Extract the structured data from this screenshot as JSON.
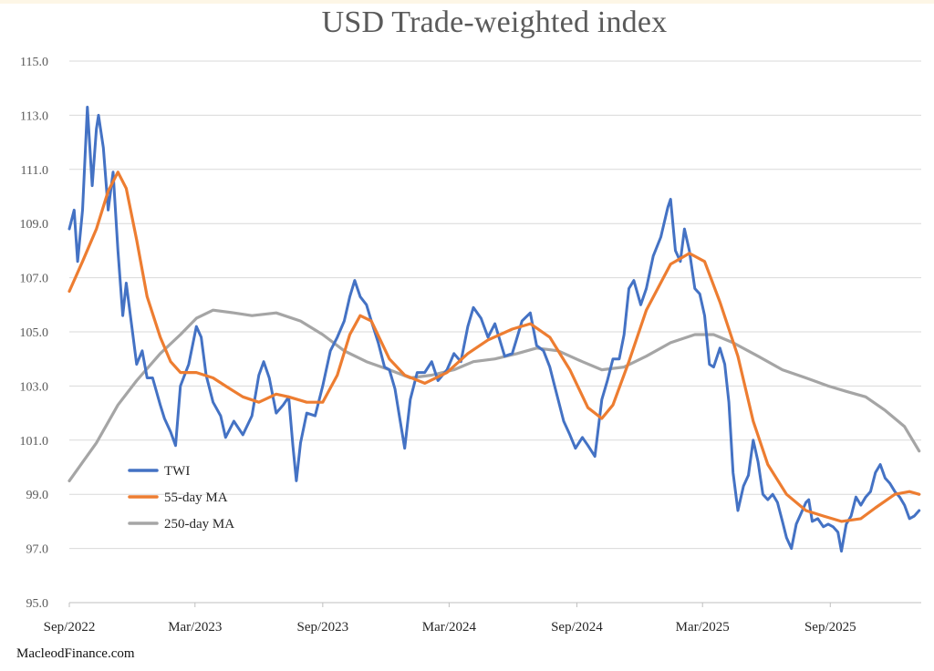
{
  "chart_data": {
    "type": "line",
    "title": "USD Trade-weighted index",
    "source": "MacleodFinance.com",
    "x_ticks": [
      "Sep/2022",
      "Mar/2023",
      "Sep/2023",
      "Mar/2024",
      "Sep/2024",
      "Mar/2025",
      "Sep/2025"
    ],
    "x_range": [
      "2022-09-01",
      "2026-01-10"
    ],
    "ylim": [
      95,
      115
    ],
    "y_ticks": [
      "95.0",
      "97.0",
      "99.0",
      "101.0",
      "103.0",
      "105.0",
      "107.0",
      "109.0",
      "111.0",
      "113.0",
      "115.0"
    ],
    "grid": true,
    "legend_position": "lower-left",
    "series": [
      {
        "name": "TWI",
        "color": "#4472c4",
        "points": [
          [
            "2022-09-01",
            108.8
          ],
          [
            "2022-09-08",
            109.5
          ],
          [
            "2022-09-13",
            107.6
          ],
          [
            "2022-09-20",
            109.5
          ],
          [
            "2022-09-27",
            113.3
          ],
          [
            "2022-10-04",
            110.4
          ],
          [
            "2022-10-10",
            112.5
          ],
          [
            "2022-10-13",
            113.0
          ],
          [
            "2022-10-20",
            111.8
          ],
          [
            "2022-10-27",
            109.5
          ],
          [
            "2022-11-03",
            110.9
          ],
          [
            "2022-11-10",
            108.0
          ],
          [
            "2022-11-17",
            105.6
          ],
          [
            "2022-11-22",
            106.8
          ],
          [
            "2022-11-30",
            105.2
          ],
          [
            "2022-12-07",
            103.8
          ],
          [
            "2022-12-15",
            104.3
          ],
          [
            "2022-12-22",
            103.3
          ],
          [
            "2022-12-30",
            103.3
          ],
          [
            "2023-01-10",
            102.3
          ],
          [
            "2023-01-16",
            101.8
          ],
          [
            "2023-01-25",
            101.3
          ],
          [
            "2023-02-01",
            100.8
          ],
          [
            "2023-02-08",
            103.0
          ],
          [
            "2023-02-20",
            103.8
          ],
          [
            "2023-03-03",
            105.2
          ],
          [
            "2023-03-10",
            104.8
          ],
          [
            "2023-03-17",
            103.4
          ],
          [
            "2023-03-27",
            102.4
          ],
          [
            "2023-04-07",
            101.9
          ],
          [
            "2023-04-14",
            101.1
          ],
          [
            "2023-04-26",
            101.7
          ],
          [
            "2023-05-09",
            101.2
          ],
          [
            "2023-05-22",
            101.9
          ],
          [
            "2023-06-01",
            103.4
          ],
          [
            "2023-06-08",
            103.9
          ],
          [
            "2023-06-16",
            103.3
          ],
          [
            "2023-06-26",
            102.0
          ],
          [
            "2023-07-06",
            102.3
          ],
          [
            "2023-07-14",
            102.6
          ],
          [
            "2023-07-20",
            100.8
          ],
          [
            "2023-07-25",
            99.5
          ],
          [
            "2023-07-31",
            100.9
          ],
          [
            "2023-08-09",
            102.0
          ],
          [
            "2023-08-21",
            101.9
          ],
          [
            "2023-09-01",
            103.0
          ],
          [
            "2023-09-12",
            104.3
          ],
          [
            "2023-09-22",
            104.8
          ],
          [
            "2023-10-02",
            105.4
          ],
          [
            "2023-10-10",
            106.3
          ],
          [
            "2023-10-17",
            106.9
          ],
          [
            "2023-10-25",
            106.3
          ],
          [
            "2023-11-03",
            106.0
          ],
          [
            "2023-11-10",
            105.4
          ],
          [
            "2023-11-20",
            104.6
          ],
          [
            "2023-11-29",
            103.7
          ],
          [
            "2023-12-06",
            103.6
          ],
          [
            "2023-12-14",
            102.9
          ],
          [
            "2023-12-21",
            101.8
          ],
          [
            "2023-12-28",
            100.7
          ],
          [
            "2024-01-05",
            102.5
          ],
          [
            "2024-01-15",
            103.5
          ],
          [
            "2024-01-26",
            103.5
          ],
          [
            "2024-02-05",
            103.9
          ],
          [
            "2024-02-14",
            103.2
          ],
          [
            "2024-02-27",
            103.6
          ],
          [
            "2024-03-08",
            104.2
          ],
          [
            "2024-03-18",
            103.9
          ],
          [
            "2024-03-28",
            105.2
          ],
          [
            "2024-04-05",
            105.9
          ],
          [
            "2024-04-16",
            105.5
          ],
          [
            "2024-04-26",
            104.8
          ],
          [
            "2024-05-06",
            105.3
          ],
          [
            "2024-05-20",
            104.1
          ],
          [
            "2024-05-31",
            104.2
          ],
          [
            "2024-06-07",
            104.8
          ],
          [
            "2024-06-14",
            105.4
          ],
          [
            "2024-06-26",
            105.7
          ],
          [
            "2024-07-05",
            104.5
          ],
          [
            "2024-07-15",
            104.3
          ],
          [
            "2024-07-24",
            103.7
          ],
          [
            "2024-07-30",
            103.1
          ],
          [
            "2024-08-05",
            102.5
          ],
          [
            "2024-08-13",
            101.7
          ],
          [
            "2024-08-22",
            101.2
          ],
          [
            "2024-08-30",
            100.7
          ],
          [
            "2024-09-09",
            101.1
          ],
          [
            "2024-09-17",
            100.8
          ],
          [
            "2024-09-27",
            100.4
          ],
          [
            "2024-10-07",
            102.5
          ],
          [
            "2024-10-15",
            103.2
          ],
          [
            "2024-10-23",
            104.0
          ],
          [
            "2024-11-01",
            104.0
          ],
          [
            "2024-11-08",
            104.9
          ],
          [
            "2024-11-15",
            106.6
          ],
          [
            "2024-11-22",
            106.9
          ],
          [
            "2024-12-02",
            106.0
          ],
          [
            "2024-12-10",
            106.6
          ],
          [
            "2024-12-20",
            107.8
          ],
          [
            "2024-12-31",
            108.5
          ],
          [
            "2025-01-10",
            109.6
          ],
          [
            "2025-01-14",
            109.9
          ],
          [
            "2025-01-21",
            108.0
          ],
          [
            "2025-01-28",
            107.6
          ],
          [
            "2025-02-03",
            108.8
          ],
          [
            "2025-02-10",
            108.0
          ],
          [
            "2025-02-18",
            106.6
          ],
          [
            "2025-02-25",
            106.4
          ],
          [
            "2025-03-04",
            105.6
          ],
          [
            "2025-03-11",
            103.8
          ],
          [
            "2025-03-17",
            103.7
          ],
          [
            "2025-03-26",
            104.4
          ],
          [
            "2025-04-02",
            103.8
          ],
          [
            "2025-04-08",
            102.4
          ],
          [
            "2025-04-14",
            99.8
          ],
          [
            "2025-04-21",
            98.4
          ],
          [
            "2025-04-29",
            99.3
          ],
          [
            "2025-05-06",
            99.7
          ],
          [
            "2025-05-13",
            101.0
          ],
          [
            "2025-05-20",
            100.2
          ],
          [
            "2025-05-27",
            99.0
          ],
          [
            "2025-06-03",
            98.8
          ],
          [
            "2025-06-10",
            99.0
          ],
          [
            "2025-06-17",
            98.7
          ],
          [
            "2025-06-24",
            98.0
          ],
          [
            "2025-06-30",
            97.4
          ],
          [
            "2025-07-07",
            97.0
          ],
          [
            "2025-07-14",
            97.9
          ],
          [
            "2025-07-21",
            98.3
          ],
          [
            "2025-07-28",
            98.7
          ],
          [
            "2025-08-01",
            98.8
          ],
          [
            "2025-08-06",
            98.0
          ],
          [
            "2025-08-14",
            98.1
          ],
          [
            "2025-08-22",
            97.8
          ],
          [
            "2025-08-29",
            97.9
          ],
          [
            "2025-09-05",
            97.8
          ],
          [
            "2025-09-12",
            97.6
          ],
          [
            "2025-09-17",
            96.9
          ],
          [
            "2025-09-24",
            97.9
          ],
          [
            "2025-10-01",
            98.2
          ],
          [
            "2025-10-08",
            98.9
          ],
          [
            "2025-10-15",
            98.6
          ],
          [
            "2025-10-22",
            98.9
          ],
          [
            "2025-10-29",
            99.1
          ],
          [
            "2025-11-05",
            99.8
          ],
          [
            "2025-11-12",
            100.1
          ],
          [
            "2025-11-19",
            99.6
          ],
          [
            "2025-11-26",
            99.4
          ],
          [
            "2025-12-03",
            99.1
          ],
          [
            "2025-12-10",
            98.9
          ],
          [
            "2025-12-17",
            98.6
          ],
          [
            "2025-12-24",
            98.1
          ],
          [
            "2025-12-31",
            98.2
          ],
          [
            "2026-01-07",
            98.4
          ]
        ]
      },
      {
        "name": "55-day MA",
        "color": "#ed7d31",
        "points": [
          [
            "2022-09-01",
            106.5
          ],
          [
            "2022-09-20",
            107.6
          ],
          [
            "2022-10-10",
            108.8
          ],
          [
            "2022-10-27",
            110.2
          ],
          [
            "2022-11-10",
            110.9
          ],
          [
            "2022-11-22",
            110.3
          ],
          [
            "2022-12-07",
            108.4
          ],
          [
            "2022-12-22",
            106.3
          ],
          [
            "2023-01-10",
            104.8
          ],
          [
            "2023-01-25",
            103.9
          ],
          [
            "2023-02-08",
            103.5
          ],
          [
            "2023-03-03",
            103.5
          ],
          [
            "2023-03-27",
            103.3
          ],
          [
            "2023-04-14",
            103.0
          ],
          [
            "2023-05-09",
            102.6
          ],
          [
            "2023-06-01",
            102.4
          ],
          [
            "2023-06-26",
            102.7
          ],
          [
            "2023-07-14",
            102.6
          ],
          [
            "2023-08-09",
            102.4
          ],
          [
            "2023-09-01",
            102.4
          ],
          [
            "2023-09-22",
            103.4
          ],
          [
            "2023-10-10",
            104.9
          ],
          [
            "2023-10-25",
            105.6
          ],
          [
            "2023-11-10",
            105.4
          ],
          [
            "2023-12-06",
            104.0
          ],
          [
            "2023-12-28",
            103.4
          ],
          [
            "2024-01-26",
            103.1
          ],
          [
            "2024-02-27",
            103.5
          ],
          [
            "2024-03-28",
            104.2
          ],
          [
            "2024-04-26",
            104.7
          ],
          [
            "2024-05-31",
            105.1
          ],
          [
            "2024-06-26",
            105.3
          ],
          [
            "2024-07-24",
            104.8
          ],
          [
            "2024-08-22",
            103.6
          ],
          [
            "2024-09-17",
            102.2
          ],
          [
            "2024-10-07",
            101.8
          ],
          [
            "2024-10-23",
            102.3
          ],
          [
            "2024-11-15",
            103.9
          ],
          [
            "2024-12-10",
            105.8
          ],
          [
            "2025-01-14",
            107.5
          ],
          [
            "2025-02-10",
            107.9
          ],
          [
            "2025-03-04",
            107.6
          ],
          [
            "2025-03-26",
            106.1
          ],
          [
            "2025-04-21",
            104.1
          ],
          [
            "2025-05-13",
            101.7
          ],
          [
            "2025-06-03",
            100.1
          ],
          [
            "2025-06-30",
            99.0
          ],
          [
            "2025-07-28",
            98.4
          ],
          [
            "2025-08-22",
            98.2
          ],
          [
            "2025-09-17",
            98.0
          ],
          [
            "2025-10-15",
            98.1
          ],
          [
            "2025-11-05",
            98.5
          ],
          [
            "2025-12-03",
            99.0
          ],
          [
            "2025-12-24",
            99.1
          ],
          [
            "2026-01-07",
            99.0
          ]
        ]
      },
      {
        "name": "250-day MA",
        "color": "#a5a5a5",
        "points": [
          [
            "2022-09-01",
            99.5
          ],
          [
            "2022-10-10",
            100.9
          ],
          [
            "2022-11-10",
            102.3
          ],
          [
            "2022-12-07",
            103.2
          ],
          [
            "2023-01-10",
            104.2
          ],
          [
            "2023-02-08",
            104.9
          ],
          [
            "2023-03-03",
            105.5
          ],
          [
            "2023-03-27",
            105.8
          ],
          [
            "2023-04-26",
            105.7
          ],
          [
            "2023-05-22",
            105.6
          ],
          [
            "2023-06-26",
            105.7
          ],
          [
            "2023-07-31",
            105.4
          ],
          [
            "2023-09-01",
            104.9
          ],
          [
            "2023-10-02",
            104.3
          ],
          [
            "2023-11-03",
            103.9
          ],
          [
            "2023-12-06",
            103.6
          ],
          [
            "2024-01-05",
            103.3
          ],
          [
            "2024-02-05",
            103.4
          ],
          [
            "2024-03-08",
            103.6
          ],
          [
            "2024-04-05",
            103.9
          ],
          [
            "2024-05-06",
            104.0
          ],
          [
            "2024-06-07",
            104.2
          ],
          [
            "2024-07-05",
            104.4
          ],
          [
            "2024-08-05",
            104.3
          ],
          [
            "2024-09-09",
            103.9
          ],
          [
            "2024-10-07",
            103.6
          ],
          [
            "2024-11-08",
            103.7
          ],
          [
            "2024-12-10",
            104.1
          ],
          [
            "2025-01-14",
            104.6
          ],
          [
            "2025-02-18",
            104.9
          ],
          [
            "2025-03-17",
            104.9
          ],
          [
            "2025-04-14",
            104.6
          ],
          [
            "2025-05-20",
            104.1
          ],
          [
            "2025-06-24",
            103.6
          ],
          [
            "2025-07-28",
            103.3
          ],
          [
            "2025-08-29",
            103.0
          ],
          [
            "2025-09-24",
            102.8
          ],
          [
            "2025-10-22",
            102.6
          ],
          [
            "2025-11-19",
            102.1
          ],
          [
            "2025-12-17",
            101.5
          ],
          [
            "2026-01-07",
            100.6
          ]
        ]
      }
    ]
  }
}
